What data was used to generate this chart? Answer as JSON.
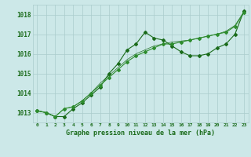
{
  "title": "Graphe pression niveau de la mer (hPa)",
  "xlabel_hours": [
    0,
    1,
    2,
    3,
    4,
    5,
    6,
    7,
    8,
    9,
    10,
    11,
    12,
    13,
    14,
    15,
    16,
    17,
    18,
    19,
    20,
    21,
    22,
    23
  ],
  "ylim": [
    1012.5,
    1018.5
  ],
  "yticks": [
    1013,
    1014,
    1015,
    1016,
    1017,
    1018
  ],
  "bg_color": "#cce8e8",
  "grid_color": "#aacccc",
  "line_color_dark": "#1a6b1a",
  "line_color_mid": "#2d8c2d",
  "series1": [
    1013.1,
    1013.0,
    1012.8,
    1012.8,
    1013.2,
    1013.5,
    1013.9,
    1014.3,
    1015.0,
    1015.5,
    1016.2,
    1016.5,
    1017.1,
    1016.8,
    1016.7,
    1016.4,
    1016.1,
    1015.9,
    1015.9,
    1016.0,
    1016.3,
    1016.5,
    1017.0,
    1018.2
  ],
  "series2": [
    1013.1,
    1013.0,
    1012.8,
    1013.2,
    1013.3,
    1013.6,
    1014.0,
    1014.4,
    1014.8,
    1015.2,
    1015.6,
    1015.9,
    1016.1,
    1016.3,
    1016.5,
    1016.5,
    1016.6,
    1016.7,
    1016.8,
    1016.9,
    1017.0,
    1017.1,
    1017.4,
    1018.1
  ],
  "series3": [
    1013.1,
    1013.0,
    1012.8,
    1013.2,
    1013.3,
    1013.6,
    1014.0,
    1014.5,
    1014.9,
    1015.3,
    1015.7,
    1016.0,
    1016.2,
    1016.4,
    1016.5,
    1016.6,
    1016.65,
    1016.7,
    1016.8,
    1016.9,
    1017.0,
    1017.15,
    1017.45,
    1018.15
  ],
  "marker": "D",
  "marker_size": 2.0,
  "linewidth": 0.8
}
